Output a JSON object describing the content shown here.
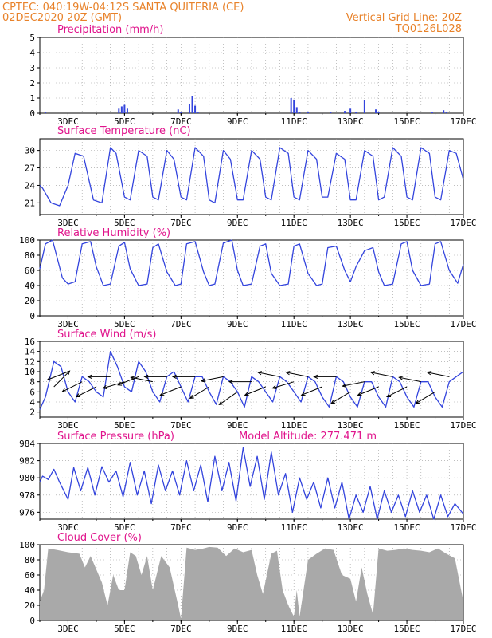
{
  "header": {
    "line1": "CPTEC:   040:19W-04:12S   SANTA QUITERIA (CE)",
    "line2": "02DEC2020 20Z (GMT)",
    "grid_note": "Vertical Grid Line: 20Z",
    "code": "TQ0126L028"
  },
  "x_tick_labels": [
    "3DEC",
    "5DEC",
    "7DEC",
    "9DEC",
    "11DEC",
    "13DEC",
    "15DEC",
    "17DEC"
  ],
  "colors": {
    "header": "#e8822a",
    "panel_title": "#e0148c",
    "series": "#3344dd",
    "cloud": "#a9a9a9",
    "grid": "#999999"
  },
  "panels": {
    "precip": {
      "title": "Precipitation (mm/h)"
    },
    "temp": {
      "title": "Surface Temperature (nC)"
    },
    "rh": {
      "title": "Relative Humidity (%)"
    },
    "wind": {
      "title": "Surface Wind (m/s)"
    },
    "pressure": {
      "title": "Surface Pressure (hPa)",
      "extra": "Model Altitude: 277.471 m"
    },
    "cloud": {
      "title": "Cloud Cover (%)"
    }
  },
  "chart_data": [
    {
      "type": "bar",
      "id": "precip",
      "ylim": [
        0,
        5
      ],
      "yticks": [
        0,
        1,
        2,
        3,
        4,
        5
      ],
      "x": [
        2.2,
        4.8,
        4.9,
        5.0,
        5.1,
        6.9,
        7.0,
        7.3,
        7.4,
        7.5,
        7.6,
        10.9,
        11.0,
        11.1,
        11.2,
        11.5,
        12.3,
        12.8,
        13.0,
        13.2,
        13.5,
        13.9,
        14.0,
        15.9,
        16.3,
        16.4
      ],
      "values": [
        0.05,
        0.3,
        0.45,
        0.55,
        0.3,
        0.25,
        0.1,
        0.6,
        1.15,
        0.5,
        0.05,
        1.0,
        0.9,
        0.4,
        0.1,
        0.1,
        0.1,
        0.15,
        0.3,
        0.1,
        0.85,
        0.25,
        0.1,
        0.05,
        0.2,
        0.1
      ]
    },
    {
      "type": "line",
      "id": "temp",
      "ylim": [
        19,
        32
      ],
      "yticks": [
        21,
        24,
        27,
        30
      ],
      "x": [
        2.0,
        2.1,
        2.4,
        2.7,
        3.0,
        3.25,
        3.55,
        3.9,
        4.2,
        4.5,
        4.7,
        5.0,
        5.2,
        5.5,
        5.8,
        6.0,
        6.2,
        6.5,
        6.75,
        7.0,
        7.2,
        7.5,
        7.8,
        8.0,
        8.2,
        8.5,
        8.75,
        9.0,
        9.2,
        9.5,
        9.8,
        10.0,
        10.2,
        10.5,
        10.8,
        11.0,
        11.2,
        11.5,
        11.8,
        12.0,
        12.2,
        12.5,
        12.8,
        13.0,
        13.2,
        13.5,
        13.8,
        14.0,
        14.2,
        14.5,
        14.8,
        15.0,
        15.2,
        15.5,
        15.8,
        16.0,
        16.2,
        16.5,
        16.75,
        17.0
      ],
      "values": [
        24,
        23.5,
        21,
        20.5,
        24,
        29.5,
        29,
        21.5,
        21,
        30.5,
        29.5,
        22,
        21.5,
        30,
        29,
        22,
        21.5,
        30,
        28.5,
        22,
        21.5,
        30.5,
        29,
        21.5,
        21,
        30,
        28.5,
        21.5,
        21.5,
        30,
        28.5,
        22,
        21.5,
        30.5,
        29.5,
        22,
        21.5,
        30,
        28.5,
        22,
        22,
        29.5,
        28.5,
        21.5,
        21.5,
        30,
        29,
        21.5,
        22,
        30.5,
        29,
        22,
        21.5,
        30.5,
        29.5,
        22,
        21.5,
        30,
        29.5,
        25
      ]
    },
    {
      "type": "line",
      "id": "rh",
      "ylim": [
        0,
        100
      ],
      "yticks": [
        0,
        20,
        40,
        60,
        80,
        100
      ],
      "x": [
        2.0,
        2.2,
        2.45,
        2.8,
        3.0,
        3.25,
        3.5,
        3.8,
        4.0,
        4.25,
        4.5,
        4.8,
        5.0,
        5.2,
        5.5,
        5.8,
        6.0,
        6.2,
        6.5,
        6.8,
        7.0,
        7.2,
        7.5,
        7.8,
        8.0,
        8.2,
        8.5,
        8.8,
        9.0,
        9.2,
        9.5,
        9.8,
        10.0,
        10.2,
        10.5,
        10.8,
        11.0,
        11.2,
        11.5,
        11.8,
        12.0,
        12.2,
        12.5,
        12.8,
        13.0,
        13.2,
        13.5,
        13.8,
        14.0,
        14.2,
        14.5,
        14.8,
        15.0,
        15.2,
        15.5,
        15.8,
        16.0,
        16.2,
        16.5,
        16.8,
        17.0
      ],
      "values": [
        62,
        95,
        100,
        50,
        42,
        45,
        95,
        98,
        65,
        40,
        42,
        92,
        97,
        62,
        40,
        42,
        90,
        95,
        58,
        40,
        42,
        95,
        98,
        58,
        40,
        42,
        96,
        100,
        60,
        40,
        42,
        92,
        95,
        56,
        40,
        42,
        92,
        95,
        56,
        40,
        42,
        90,
        92,
        60,
        45,
        65,
        86,
        90,
        58,
        40,
        42,
        95,
        98,
        60,
        40,
        42,
        95,
        98,
        60,
        43,
        68
      ]
    },
    {
      "type": "line",
      "id": "wind",
      "ylim": [
        1,
        16
      ],
      "yticks": [
        2,
        4,
        6,
        8,
        10,
        12,
        14,
        16
      ],
      "x": [
        2.0,
        2.2,
        2.5,
        2.75,
        3.0,
        3.25,
        3.5,
        3.75,
        4.0,
        4.25,
        4.5,
        4.75,
        5.0,
        5.25,
        5.5,
        5.75,
        6.0,
        6.25,
        6.5,
        6.75,
        7.0,
        7.25,
        7.5,
        7.75,
        8.0,
        8.25,
        8.5,
        8.75,
        9.0,
        9.25,
        9.5,
        9.75,
        10.0,
        10.25,
        10.5,
        10.75,
        11.0,
        11.25,
        11.5,
        11.75,
        12.0,
        12.25,
        12.5,
        12.75,
        13.0,
        13.25,
        13.5,
        13.75,
        14.0,
        14.25,
        14.5,
        14.75,
        15.0,
        15.25,
        15.5,
        15.75,
        16.0,
        16.25,
        16.5,
        16.75,
        17.0
      ],
      "values": [
        2.5,
        5,
        12,
        11,
        6,
        4,
        9,
        8,
        6,
        5,
        14,
        11,
        7,
        6,
        12,
        10,
        6,
        4,
        9,
        10,
        7,
        4,
        9,
        9,
        6,
        3.5,
        9,
        8,
        6,
        3,
        9,
        8,
        6,
        4,
        9,
        8,
        6,
        4,
        9,
        8,
        5,
        3,
        9,
        8,
        5,
        3,
        8,
        8,
        5,
        3,
        9,
        8,
        5,
        3,
        8,
        8,
        5,
        3,
        8,
        9,
        10
      ],
      "arrows": [
        {
          "x": 2.5,
          "y": 7,
          "dx": 1,
          "dy": 1
        },
        {
          "x": 3.0,
          "y": 10,
          "dx": -1,
          "dy": -0.4
        },
        {
          "x": 3.5,
          "y": 8,
          "dx": -1,
          "dy": -0.5
        },
        {
          "x": 4.0,
          "y": 7,
          "dx": -1,
          "dy": -0.5
        },
        {
          "x": 4.5,
          "y": 9,
          "dx": -1,
          "dy": 0
        },
        {
          "x": 5.0,
          "y": 8,
          "dx": -1,
          "dy": -0.3
        },
        {
          "x": 5.5,
          "y": 9,
          "dx": -1,
          "dy": -0.4
        },
        {
          "x": 6.0,
          "y": 8,
          "dx": -1,
          "dy": 0.2
        },
        {
          "x": 6.5,
          "y": 9,
          "dx": -1,
          "dy": 0
        },
        {
          "x": 7.0,
          "y": 7,
          "dx": -1,
          "dy": -0.4
        },
        {
          "x": 7.5,
          "y": 9,
          "dx": -1,
          "dy": 0
        },
        {
          "x": 8.0,
          "y": 7,
          "dx": -1,
          "dy": -0.6
        },
        {
          "x": 8.5,
          "y": 9,
          "dx": -1,
          "dy": -0.2
        },
        {
          "x": 9.0,
          "y": 6,
          "dx": -1,
          "dy": -0.7
        },
        {
          "x": 9.5,
          "y": 8,
          "dx": -1,
          "dy": 0
        },
        {
          "x": 10.0,
          "y": 7,
          "dx": -1,
          "dy": -0.4
        },
        {
          "x": 10.5,
          "y": 9,
          "dx": -1,
          "dy": 0.2
        },
        {
          "x": 11.0,
          "y": 8,
          "dx": -1,
          "dy": -0.3
        },
        {
          "x": 11.5,
          "y": 9,
          "dx": -1,
          "dy": 0.2
        },
        {
          "x": 12.0,
          "y": 7,
          "dx": -1,
          "dy": -0.4
        },
        {
          "x": 12.5,
          "y": 9,
          "dx": -1,
          "dy": 0
        },
        {
          "x": 13.0,
          "y": 6,
          "dx": -1,
          "dy": -0.6
        },
        {
          "x": 13.5,
          "y": 8,
          "dx": -1,
          "dy": -0.2
        },
        {
          "x": 14.0,
          "y": 7,
          "dx": -1,
          "dy": -0.4
        },
        {
          "x": 14.5,
          "y": 9,
          "dx": -1,
          "dy": 0.2
        },
        {
          "x": 15.0,
          "y": 7,
          "dx": -1,
          "dy": -0.5
        },
        {
          "x": 15.5,
          "y": 8,
          "dx": -1,
          "dy": 0.2
        },
        {
          "x": 16.0,
          "y": 6,
          "dx": -1,
          "dy": -0.6
        },
        {
          "x": 16.5,
          "y": 9,
          "dx": -1,
          "dy": 0.2
        }
      ]
    },
    {
      "type": "line",
      "id": "pressure",
      "ylim": [
        975.2,
        984
      ],
      "yticks": [
        976,
        978,
        980,
        982,
        984
      ],
      "x": [
        2.0,
        2.1,
        2.3,
        2.5,
        2.7,
        3.0,
        3.2,
        3.45,
        3.7,
        3.95,
        4.2,
        4.45,
        4.7,
        4.95,
        5.2,
        5.45,
        5.7,
        5.95,
        6.2,
        6.45,
        6.7,
        6.95,
        7.2,
        7.45,
        7.7,
        7.95,
        8.2,
        8.45,
        8.7,
        8.95,
        9.2,
        9.45,
        9.7,
        9.95,
        10.2,
        10.45,
        10.7,
        10.95,
        11.2,
        11.45,
        11.7,
        11.95,
        12.2,
        12.45,
        12.7,
        12.95,
        13.2,
        13.45,
        13.7,
        13.95,
        14.2,
        14.45,
        14.7,
        14.95,
        15.2,
        15.45,
        15.7,
        15.95,
        16.2,
        16.45,
        16.7,
        17.0
      ],
      "values": [
        979.5,
        980.2,
        979.8,
        981.0,
        979.5,
        977.5,
        981.2,
        978.5,
        981.2,
        978.0,
        981.3,
        979.5,
        980.8,
        977.8,
        981.8,
        978.0,
        980.8,
        977.0,
        981.5,
        978.5,
        980.8,
        978.0,
        982.0,
        978.5,
        981.5,
        977.2,
        982.5,
        978.5,
        981.8,
        977.3,
        983.5,
        979.0,
        982.5,
        977.5,
        983.0,
        978.0,
        980.5,
        976.0,
        980.0,
        977.5,
        979.5,
        976.5,
        980.0,
        976.5,
        979.5,
        974.8,
        978.0,
        976.0,
        979.0,
        975.0,
        978.5,
        976.0,
        978.0,
        975.5,
        978.5,
        976.0,
        978.0,
        975.0,
        978.0,
        975.5,
        977.0,
        975.8
      ]
    },
    {
      "type": "area",
      "id": "cloud",
      "ylim": [
        0,
        100
      ],
      "yticks": [
        0,
        20,
        40,
        60,
        80,
        100
      ],
      "x": [
        2.0,
        2.15,
        2.3,
        2.6,
        3.0,
        3.4,
        3.6,
        3.8,
        4.2,
        4.4,
        4.6,
        4.8,
        5.0,
        5.2,
        5.4,
        5.6,
        5.8,
        6.0,
        6.3,
        6.6,
        6.9,
        7.0,
        7.2,
        7.5,
        7.8,
        8.0,
        8.3,
        8.6,
        8.9,
        9.2,
        9.5,
        9.7,
        9.9,
        10.2,
        10.4,
        10.6,
        10.8,
        11.0,
        11.1,
        11.2,
        11.5,
        11.8,
        12.1,
        12.4,
        12.7,
        13.0,
        13.2,
        13.4,
        13.6,
        13.8,
        14.0,
        14.3,
        14.6,
        14.9,
        15.2,
        15.5,
        15.8,
        16.1,
        16.4,
        16.7,
        17.0
      ],
      "values": [
        25,
        40,
        95,
        93,
        90,
        88,
        70,
        85,
        50,
        20,
        60,
        40,
        40,
        90,
        85,
        60,
        85,
        40,
        85,
        70,
        20,
        2,
        96,
        93,
        95,
        97,
        96,
        85,
        95,
        90,
        93,
        60,
        35,
        88,
        92,
        40,
        20,
        5,
        40,
        5,
        80,
        88,
        95,
        93,
        60,
        55,
        25,
        70,
        35,
        8,
        95,
        92,
        93,
        95,
        93,
        92,
        90,
        95,
        88,
        82,
        25
      ]
    }
  ]
}
